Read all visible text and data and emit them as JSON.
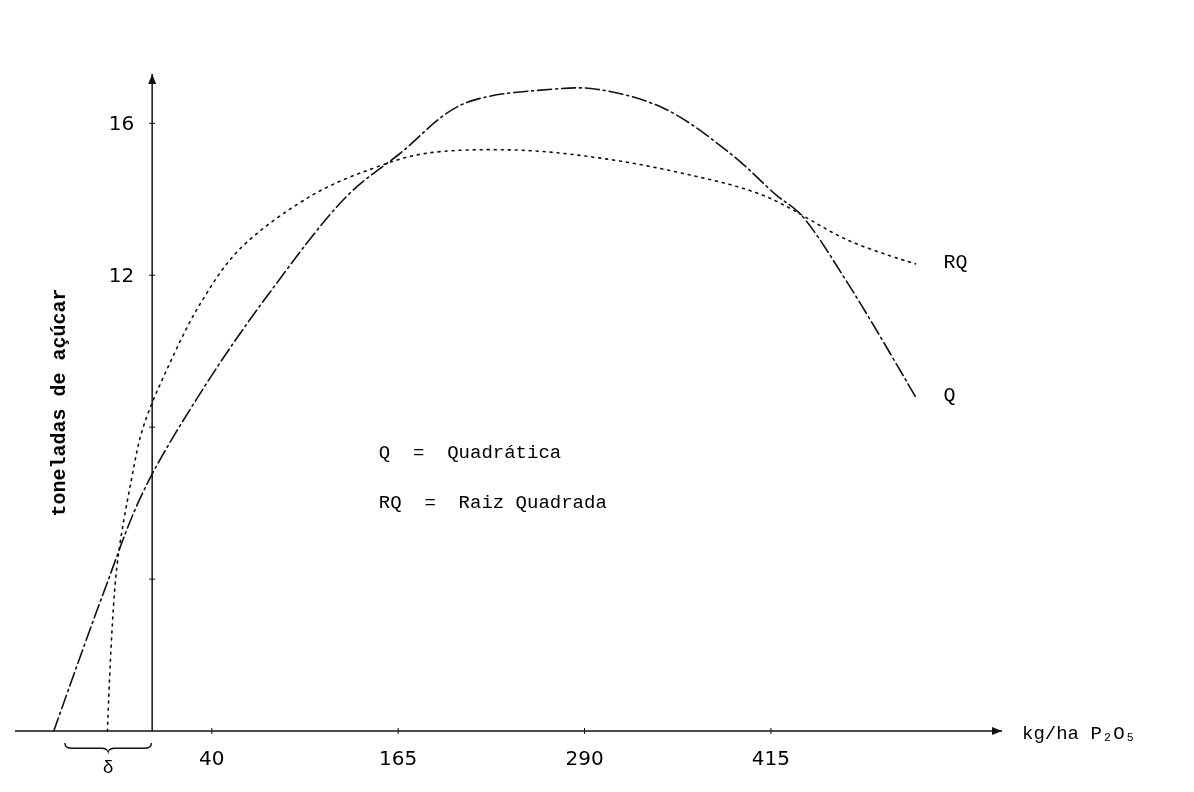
{
  "chart_data": {
    "type": "line",
    "xlabel": "kg/ha P₂O₅",
    "ylabel": "toneladas de açúcar",
    "xlim": [
      -92,
      570
    ],
    "xticks": [
      40,
      165,
      290,
      415
    ],
    "ylim": [
      0,
      17.3
    ],
    "yticks": [
      {
        "value": 4,
        "label": null
      },
      {
        "value": 8,
        "label": null
      },
      12,
      16
    ],
    "grid": false,
    "marker": "none",
    "series": [
      {
        "name": "Q",
        "color": "#111111",
        "line_style": "dashed",
        "x": [
          -66,
          -33,
          -6,
          34,
          78,
          131,
          166,
          208,
          269,
          298,
          343,
          388,
          419,
          435,
          468,
          512
        ],
        "values": [
          0,
          3.6,
          6.3,
          9.0,
          11.5,
          14.1,
          15.2,
          16.5,
          16.9,
          16.9,
          16.4,
          15.2,
          14.1,
          13.6,
          11.7,
          8.8
        ]
      },
      {
        "name": "RQ",
        "color": "#111111",
        "line_style": "dotted",
        "x": [
          -30,
          -24,
          -14,
          -6,
          12,
          33,
          59,
          107,
          147,
          182,
          242,
          298,
          354,
          410,
          468,
          512
        ],
        "values": [
          0,
          4.2,
          6.6,
          8.0,
          9.7,
          11.3,
          12.7,
          14.1,
          14.8,
          15.2,
          15.3,
          15.1,
          14.7,
          14.1,
          12.9,
          12.3
        ]
      }
    ],
    "annotations": [
      "Q  =  Quadrática",
      "RQ  =  Raiz Quadrada",
      "δ"
    ]
  }
}
